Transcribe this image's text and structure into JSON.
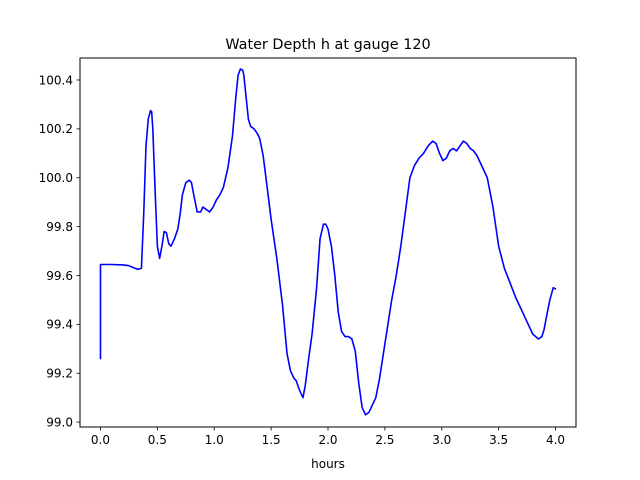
{
  "chart_data": {
    "type": "line",
    "title": "Water Depth h at gauge 120",
    "xlabel": "hours",
    "ylabel": "",
    "xlim": [
      -0.18,
      4.18
    ],
    "ylim": [
      98.98,
      100.49
    ],
    "x_ticks": [
      0.0,
      0.5,
      1.0,
      1.5,
      2.0,
      2.5,
      3.0,
      3.5,
      4.0
    ],
    "x_tick_labels": [
      "0.0",
      "0.5",
      "1.0",
      "1.5",
      "2.0",
      "2.5",
      "3.0",
      "3.5",
      "4.0"
    ],
    "y_ticks": [
      99.0,
      99.2,
      99.4,
      99.6,
      99.8,
      100.0,
      100.2,
      100.4
    ],
    "y_tick_labels": [
      "99.0",
      "99.2",
      "99.4",
      "99.6",
      "99.8",
      "100.0",
      "100.2",
      "100.4"
    ],
    "grid": false,
    "legend": "none",
    "series": [
      {
        "color": "#0000ff",
        "x": [
          0.0,
          0.0,
          0.05,
          0.1,
          0.2,
          0.25,
          0.3,
          0.33,
          0.36,
          0.38,
          0.4,
          0.42,
          0.44,
          0.45,
          0.46,
          0.48,
          0.5,
          0.52,
          0.54,
          0.56,
          0.58,
          0.6,
          0.62,
          0.65,
          0.68,
          0.7,
          0.72,
          0.75,
          0.78,
          0.8,
          0.82,
          0.85,
          0.88,
          0.9,
          0.93,
          0.96,
          0.99,
          1.02,
          1.05,
          1.08,
          1.12,
          1.16,
          1.19,
          1.21,
          1.23,
          1.25,
          1.26,
          1.28,
          1.3,
          1.32,
          1.35,
          1.38,
          1.4,
          1.43,
          1.46,
          1.5,
          1.55,
          1.6,
          1.64,
          1.67,
          1.7,
          1.72,
          1.75,
          1.78,
          1.8,
          1.83,
          1.86,
          1.9,
          1.93,
          1.96,
          1.98,
          2.0,
          2.03,
          2.06,
          2.09,
          2.12,
          2.15,
          2.18,
          2.21,
          2.24,
          2.27,
          2.3,
          2.33,
          2.36,
          2.38,
          2.4,
          2.42,
          2.45,
          2.48,
          2.52,
          2.56,
          2.6,
          2.64,
          2.68,
          2.72,
          2.76,
          2.8,
          2.84,
          2.88,
          2.92,
          2.95,
          2.98,
          3.01,
          3.04,
          3.07,
          3.1,
          3.13,
          3.16,
          3.19,
          3.22,
          3.25,
          3.28,
          3.31,
          3.35,
          3.4,
          3.45,
          3.5,
          3.55,
          3.6,
          3.65,
          3.7,
          3.75,
          3.8,
          3.85,
          3.88,
          3.9,
          3.92,
          3.95,
          3.98,
          4.0
        ],
        "y": [
          99.26,
          99.645,
          99.645,
          99.645,
          99.643,
          99.64,
          99.63,
          99.625,
          99.63,
          99.85,
          100.13,
          100.24,
          100.275,
          100.27,
          100.2,
          99.95,
          99.72,
          99.67,
          99.72,
          99.78,
          99.775,
          99.73,
          99.72,
          99.75,
          99.79,
          99.85,
          99.93,
          99.98,
          99.99,
          99.98,
          99.93,
          99.86,
          99.86,
          99.88,
          99.87,
          99.86,
          99.88,
          99.91,
          99.93,
          99.96,
          100.04,
          100.17,
          100.33,
          100.42,
          100.445,
          100.44,
          100.42,
          100.33,
          100.24,
          100.21,
          100.2,
          100.18,
          100.16,
          100.09,
          99.98,
          99.83,
          99.67,
          99.48,
          99.28,
          99.21,
          99.18,
          99.17,
          99.13,
          99.1,
          99.15,
          99.26,
          99.36,
          99.55,
          99.75,
          99.81,
          99.81,
          99.79,
          99.72,
          99.6,
          99.45,
          99.37,
          99.35,
          99.35,
          99.34,
          99.29,
          99.16,
          99.06,
          99.03,
          99.04,
          99.06,
          99.08,
          99.1,
          99.17,
          99.26,
          99.38,
          99.5,
          99.6,
          99.72,
          99.86,
          100.0,
          100.05,
          100.08,
          100.1,
          100.13,
          100.15,
          100.14,
          100.1,
          100.07,
          100.08,
          100.11,
          100.12,
          100.11,
          100.13,
          100.15,
          100.14,
          100.12,
          100.11,
          100.09,
          100.05,
          100.0,
          99.88,
          99.72,
          99.63,
          99.57,
          99.51,
          99.46,
          99.41,
          99.36,
          99.34,
          99.35,
          99.38,
          99.43,
          99.5,
          99.55,
          99.545
        ]
      }
    ]
  }
}
